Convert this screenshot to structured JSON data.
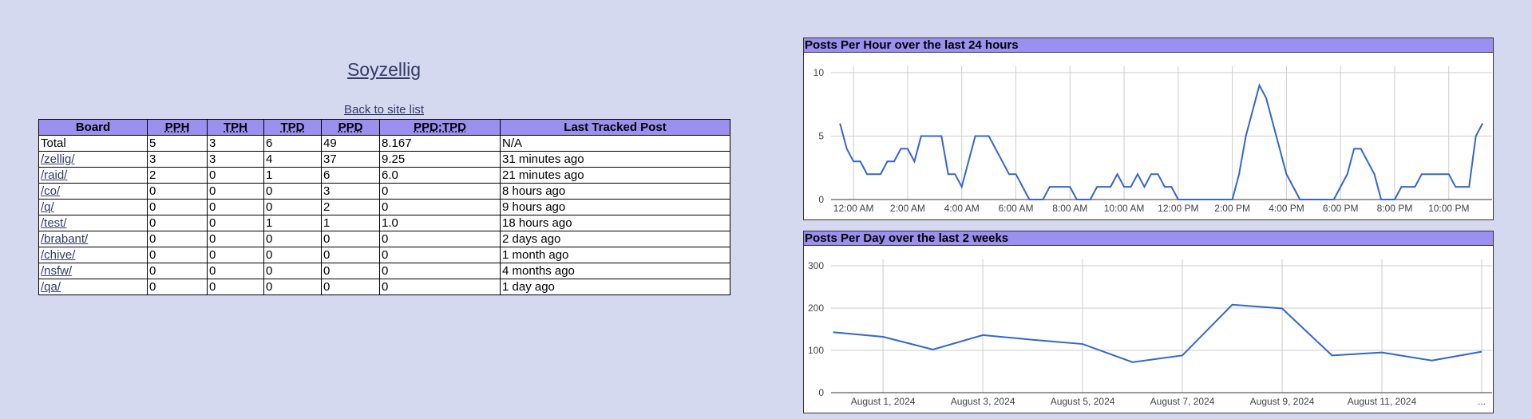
{
  "header": {
    "title": "Soyzellig",
    "back_link": "Back to site list"
  },
  "table": {
    "columns": [
      "Board",
      "PPH",
      "TPH",
      "TPD",
      "PPD",
      "PPD:TPD",
      "Last Tracked Post"
    ],
    "rows": [
      [
        "Total",
        "5",
        "3",
        "6",
        "49",
        "8.167",
        "N/A"
      ],
      [
        "/zellig/",
        "3",
        "3",
        "4",
        "37",
        "9.25",
        "31 minutes ago"
      ],
      [
        "/raid/",
        "2",
        "0",
        "1",
        "6",
        "6.0",
        "21 minutes ago"
      ],
      [
        "/co/",
        "0",
        "0",
        "0",
        "3",
        "0",
        "8 hours ago"
      ],
      [
        "/q/",
        "0",
        "0",
        "0",
        "2",
        "0",
        "9 hours ago"
      ],
      [
        "/test/",
        "0",
        "0",
        "1",
        "1",
        "1.0",
        "18 hours ago"
      ],
      [
        "/brabant/",
        "0",
        "0",
        "0",
        "0",
        "0",
        "2 days ago"
      ],
      [
        "/chive/",
        "0",
        "0",
        "0",
        "0",
        "0",
        "1 month ago"
      ],
      [
        "/nsfw/",
        "0",
        "0",
        "0",
        "0",
        "0",
        "4 months ago"
      ],
      [
        "/qa/",
        "0",
        "0",
        "0",
        "0",
        "0",
        "1 day ago"
      ]
    ]
  },
  "chart_data": [
    {
      "type": "line",
      "title": "Posts Per Hour over the last 24 hours",
      "color": "#3366cc",
      "grid": true,
      "x": [
        -0.5,
        -0.25,
        0,
        0.25,
        0.5,
        0.75,
        1,
        1.25,
        1.5,
        1.75,
        2,
        2.25,
        2.5,
        2.75,
        3,
        3.25,
        3.5,
        3.75,
        4,
        4.25,
        4.5,
        4.75,
        5,
        5.25,
        5.5,
        5.75,
        6,
        6.25,
        6.5,
        6.75,
        7,
        7.25,
        7.5,
        7.75,
        8,
        8.25,
        8.5,
        8.75,
        9,
        9.25,
        9.5,
        9.75,
        10,
        10.25,
        10.5,
        10.75,
        11,
        11.25,
        11.5,
        11.75,
        12,
        12.25,
        12.5,
        12.75,
        13,
        13.25,
        13.5,
        13.75,
        14,
        14.25,
        14.5,
        14.75,
        15,
        15.25,
        15.5,
        15.75,
        16,
        16.25,
        16.5,
        16.75,
        17,
        17.25,
        17.5,
        17.75,
        18,
        18.25,
        18.5,
        18.75,
        19,
        19.25,
        19.5,
        19.75,
        20,
        20.25,
        20.5,
        20.75,
        21,
        21.25,
        21.5,
        21.75,
        22,
        22.25,
        22.5,
        22.75,
        23,
        23.25
      ],
      "values": [
        6,
        4,
        3,
        3,
        2,
        2,
        2,
        3,
        3,
        4,
        4,
        3,
        5,
        5,
        5,
        5,
        2,
        2,
        1,
        3,
        5,
        5,
        5,
        4,
        3,
        2,
        2,
        1,
        0,
        0,
        0,
        1,
        1,
        1,
        1,
        0,
        0,
        0,
        1,
        1,
        1,
        2,
        1,
        1,
        2,
        1,
        2,
        2,
        1,
        1,
        0,
        0,
        0,
        0,
        0,
        0,
        0,
        0,
        0,
        2,
        5,
        7,
        9,
        8,
        6,
        4,
        2,
        1,
        0,
        0,
        0,
        0,
        0,
        0,
        1,
        2,
        4,
        4,
        3,
        2,
        0,
        0,
        0,
        1,
        1,
        1,
        2,
        2,
        2,
        2,
        2,
        1,
        1,
        1,
        5,
        6
      ],
      "xlim": [
        -0.83,
        23.6
      ],
      "ylim": [
        0,
        10
      ],
      "yticks": [
        0,
        5,
        10
      ],
      "xticks": [
        {
          "value": 0,
          "label": "12:00 AM"
        },
        {
          "value": 2,
          "label": "2:00 AM"
        },
        {
          "value": 4,
          "label": "4:00 AM"
        },
        {
          "value": 6,
          "label": "6:00 AM"
        },
        {
          "value": 8,
          "label": "8:00 AM"
        },
        {
          "value": 10,
          "label": "10:00 AM"
        },
        {
          "value": 12,
          "label": "12:00 PM"
        },
        {
          "value": 14,
          "label": "2:00 PM"
        },
        {
          "value": 16,
          "label": "4:00 PM"
        },
        {
          "value": 18,
          "label": "6:00 PM"
        },
        {
          "value": 20,
          "label": "8:00 PM"
        },
        {
          "value": 22,
          "label": "10:00 PM"
        }
      ]
    },
    {
      "type": "line",
      "title": "Posts Per Day over the last 2 weeks",
      "color": "#3366cc",
      "grid": true,
      "x": [
        "2024-07-31",
        "2024-08-01",
        "2024-08-02",
        "2024-08-03",
        "2024-08-04",
        "2024-08-05",
        "2024-08-06",
        "2024-08-07",
        "2024-08-08",
        "2024-08-09",
        "2024-08-10",
        "2024-08-11",
        "2024-08-12",
        "2024-08-13"
      ],
      "values": [
        143,
        132,
        102,
        136,
        125,
        115,
        72,
        88,
        208,
        199,
        88,
        95,
        76,
        97
      ],
      "xlim": [
        "2024-07-30T23:00",
        "2024-08-13T05:00"
      ],
      "ylim": [
        0,
        300
      ],
      "yticks": [
        0,
        100,
        200,
        300
      ],
      "xticks": [
        {
          "value": "2024-08-01",
          "label": "August 1, 2024"
        },
        {
          "value": "2024-08-03",
          "label": "August 3, 2024"
        },
        {
          "value": "2024-08-05",
          "label": "August 5, 2024"
        },
        {
          "value": "2024-08-07",
          "label": "August 7, 2024"
        },
        {
          "value": "2024-08-09",
          "label": "August 9, 2024"
        },
        {
          "value": "2024-08-11",
          "label": "August 11, 2024"
        },
        {
          "value": "2024-08-13",
          "label": "..."
        }
      ]
    }
  ]
}
